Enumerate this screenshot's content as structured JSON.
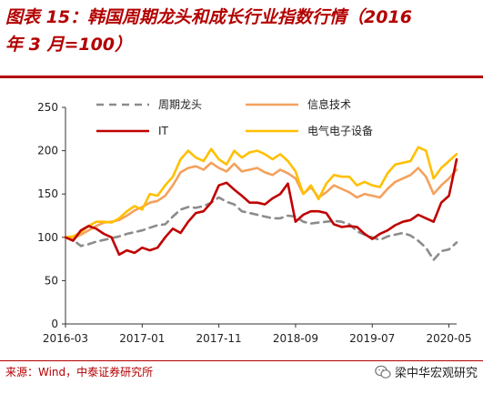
{
  "title": {
    "line1": "图表 15：韩国周期龙头和成长行业指数行情（2016",
    "line2": "年 3 月=100）"
  },
  "source": "来源：Wind，中泰证券研究所",
  "watermark": "梁中华宏观研究",
  "colors": {
    "accent": "#b30000",
    "cyclical": "#8c8c8c",
    "infotech": "#f4a15d",
    "it": "#c00000",
    "electrical": "#ffc000"
  },
  "chart_data": {
    "type": "line",
    "ylim": [
      0,
      250
    ],
    "yticks": [
      0,
      50,
      100,
      150,
      200,
      250
    ],
    "x_range": [
      "2016-03",
      "2020-06"
    ],
    "xtick_labels": [
      "2016-03",
      "2017-01",
      "2017-11",
      "2018-09",
      "2019-07",
      "2020-05"
    ],
    "legend_position": "top",
    "series": [
      {
        "name": "周期龙头",
        "color": "#8c8c8c",
        "style": "dashed",
        "points": [
          [
            "2016-03",
            100
          ],
          [
            "2016-04",
            97
          ],
          [
            "2016-05",
            90
          ],
          [
            "2016-06",
            92
          ],
          [
            "2016-07",
            95
          ],
          [
            "2016-08",
            97
          ],
          [
            "2016-09",
            99
          ],
          [
            "2016-10",
            101
          ],
          [
            "2016-11",
            104
          ],
          [
            "2016-12",
            106
          ],
          [
            "2017-01",
            108
          ],
          [
            "2017-02",
            111
          ],
          [
            "2017-03",
            114
          ],
          [
            "2017-04",
            115
          ],
          [
            "2017-05",
            124
          ],
          [
            "2017-06",
            132
          ],
          [
            "2017-07",
            135
          ],
          [
            "2017-08",
            134
          ],
          [
            "2017-09",
            136
          ],
          [
            "2017-10",
            140
          ],
          [
            "2017-11",
            146
          ],
          [
            "2017-12",
            141
          ],
          [
            "2018-01",
            138
          ],
          [
            "2018-02",
            130
          ],
          [
            "2018-03",
            128
          ],
          [
            "2018-04",
            126
          ],
          [
            "2018-05",
            124
          ],
          [
            "2018-06",
            122
          ],
          [
            "2018-07",
            122
          ],
          [
            "2018-08",
            125
          ],
          [
            "2018-09",
            124
          ],
          [
            "2018-10",
            118
          ],
          [
            "2018-11",
            116
          ],
          [
            "2018-12",
            117
          ],
          [
            "2019-01",
            118
          ],
          [
            "2019-02",
            119
          ],
          [
            "2019-03",
            118
          ],
          [
            "2019-04",
            115
          ],
          [
            "2019-05",
            107
          ],
          [
            "2019-06",
            103
          ],
          [
            "2019-07",
            100
          ],
          [
            "2019-08",
            97
          ],
          [
            "2019-09",
            101
          ],
          [
            "2019-10",
            103
          ],
          [
            "2019-11",
            105
          ],
          [
            "2019-12",
            102
          ],
          [
            "2020-01",
            96
          ],
          [
            "2020-02",
            88
          ],
          [
            "2020-03",
            74
          ],
          [
            "2020-04",
            84
          ],
          [
            "2020-05",
            86
          ],
          [
            "2020-06",
            94
          ]
        ]
      },
      {
        "name": "信息技术",
        "color": "#f4a15d",
        "style": "solid",
        "points": [
          [
            "2016-03",
            100
          ],
          [
            "2016-04",
            99
          ],
          [
            "2016-05",
            103
          ],
          [
            "2016-06",
            108
          ],
          [
            "2016-07",
            113
          ],
          [
            "2016-08",
            117
          ],
          [
            "2016-09",
            118
          ],
          [
            "2016-10",
            120
          ],
          [
            "2016-11",
            125
          ],
          [
            "2016-12",
            131
          ],
          [
            "2017-01",
            135
          ],
          [
            "2017-02",
            140
          ],
          [
            "2017-03",
            142
          ],
          [
            "2017-04",
            148
          ],
          [
            "2017-05",
            160
          ],
          [
            "2017-06",
            175
          ],
          [
            "2017-07",
            180
          ],
          [
            "2017-08",
            182
          ],
          [
            "2017-09",
            178
          ],
          [
            "2017-10",
            186
          ],
          [
            "2017-11",
            180
          ],
          [
            "2017-12",
            176
          ],
          [
            "2018-01",
            185
          ],
          [
            "2018-02",
            176
          ],
          [
            "2018-03",
            178
          ],
          [
            "2018-04",
            180
          ],
          [
            "2018-05",
            175
          ],
          [
            "2018-06",
            172
          ],
          [
            "2018-07",
            178
          ],
          [
            "2018-08",
            174
          ],
          [
            "2018-09",
            168
          ],
          [
            "2018-10",
            150
          ],
          [
            "2018-11",
            158
          ],
          [
            "2018-12",
            146
          ],
          [
            "2019-01",
            152
          ],
          [
            "2019-02",
            160
          ],
          [
            "2019-03",
            156
          ],
          [
            "2019-04",
            152
          ],
          [
            "2019-05",
            146
          ],
          [
            "2019-06",
            150
          ],
          [
            "2019-07",
            148
          ],
          [
            "2019-08",
            146
          ],
          [
            "2019-09",
            156
          ],
          [
            "2019-10",
            164
          ],
          [
            "2019-11",
            168
          ],
          [
            "2019-12",
            172
          ],
          [
            "2020-01",
            180
          ],
          [
            "2020-02",
            170
          ],
          [
            "2020-03",
            150
          ],
          [
            "2020-04",
            160
          ],
          [
            "2020-05",
            168
          ],
          [
            "2020-06",
            178
          ]
        ]
      },
      {
        "name": "IT",
        "color": "#c00000",
        "style": "solid",
        "points": [
          [
            "2016-03",
            100
          ],
          [
            "2016-04",
            96
          ],
          [
            "2016-05",
            108
          ],
          [
            "2016-06",
            113
          ],
          [
            "2016-07",
            110
          ],
          [
            "2016-08",
            104
          ],
          [
            "2016-09",
            100
          ],
          [
            "2016-10",
            80
          ],
          [
            "2016-11",
            85
          ],
          [
            "2016-12",
            82
          ],
          [
            "2017-01",
            88
          ],
          [
            "2017-02",
            85
          ],
          [
            "2017-03",
            88
          ],
          [
            "2017-04",
            100
          ],
          [
            "2017-05",
            110
          ],
          [
            "2017-06",
            105
          ],
          [
            "2017-07",
            118
          ],
          [
            "2017-08",
            128
          ],
          [
            "2017-09",
            130
          ],
          [
            "2017-10",
            140
          ],
          [
            "2017-11",
            160
          ],
          [
            "2017-12",
            163
          ],
          [
            "2018-01",
            155
          ],
          [
            "2018-02",
            148
          ],
          [
            "2018-03",
            140
          ],
          [
            "2018-04",
            140
          ],
          [
            "2018-05",
            138
          ],
          [
            "2018-06",
            145
          ],
          [
            "2018-07",
            150
          ],
          [
            "2018-08",
            162
          ],
          [
            "2018-09",
            118
          ],
          [
            "2018-10",
            126
          ],
          [
            "2018-11",
            130
          ],
          [
            "2018-12",
            130
          ],
          [
            "2019-01",
            128
          ],
          [
            "2019-02",
            115
          ],
          [
            "2019-03",
            112
          ],
          [
            "2019-04",
            113
          ],
          [
            "2019-05",
            112
          ],
          [
            "2019-06",
            104
          ],
          [
            "2019-07",
            98
          ],
          [
            "2019-08",
            104
          ],
          [
            "2019-09",
            108
          ],
          [
            "2019-10",
            114
          ],
          [
            "2019-11",
            118
          ],
          [
            "2019-12",
            120
          ],
          [
            "2020-01",
            126
          ],
          [
            "2020-02",
            122
          ],
          [
            "2020-03",
            118
          ],
          [
            "2020-04",
            140
          ],
          [
            "2020-05",
            148
          ],
          [
            "2020-06",
            190
          ]
        ]
      },
      {
        "name": "电气电子设备",
        "color": "#ffc000",
        "style": "solid",
        "points": [
          [
            "2016-03",
            100
          ],
          [
            "2016-04",
            101
          ],
          [
            "2016-05",
            106
          ],
          [
            "2016-06",
            113
          ],
          [
            "2016-07",
            118
          ],
          [
            "2016-08",
            118
          ],
          [
            "2016-09",
            117
          ],
          [
            "2016-10",
            122
          ],
          [
            "2016-11",
            130
          ],
          [
            "2016-12",
            136
          ],
          [
            "2017-01",
            132
          ],
          [
            "2017-02",
            150
          ],
          [
            "2017-03",
            148
          ],
          [
            "2017-04",
            160
          ],
          [
            "2017-05",
            170
          ],
          [
            "2017-06",
            190
          ],
          [
            "2017-07",
            200
          ],
          [
            "2017-08",
            192
          ],
          [
            "2017-09",
            188
          ],
          [
            "2017-10",
            202
          ],
          [
            "2017-11",
            190
          ],
          [
            "2017-12",
            184
          ],
          [
            "2018-01",
            200
          ],
          [
            "2018-02",
            192
          ],
          [
            "2018-03",
            198
          ],
          [
            "2018-04",
            200
          ],
          [
            "2018-05",
            196
          ],
          [
            "2018-06",
            190
          ],
          [
            "2018-07",
            196
          ],
          [
            "2018-08",
            188
          ],
          [
            "2018-09",
            176
          ],
          [
            "2018-10",
            150
          ],
          [
            "2018-11",
            160
          ],
          [
            "2018-12",
            144
          ],
          [
            "2019-01",
            162
          ],
          [
            "2019-02",
            172
          ],
          [
            "2019-03",
            170
          ],
          [
            "2019-04",
            170
          ],
          [
            "2019-05",
            160
          ],
          [
            "2019-06",
            164
          ],
          [
            "2019-07",
            160
          ],
          [
            "2019-08",
            158
          ],
          [
            "2019-09",
            174
          ],
          [
            "2019-10",
            184
          ],
          [
            "2019-11",
            186
          ],
          [
            "2019-12",
            188
          ],
          [
            "2020-01",
            204
          ],
          [
            "2020-02",
            200
          ],
          [
            "2020-03",
            168
          ],
          [
            "2020-04",
            180
          ],
          [
            "2020-05",
            188
          ],
          [
            "2020-06",
            196
          ]
        ]
      }
    ]
  }
}
